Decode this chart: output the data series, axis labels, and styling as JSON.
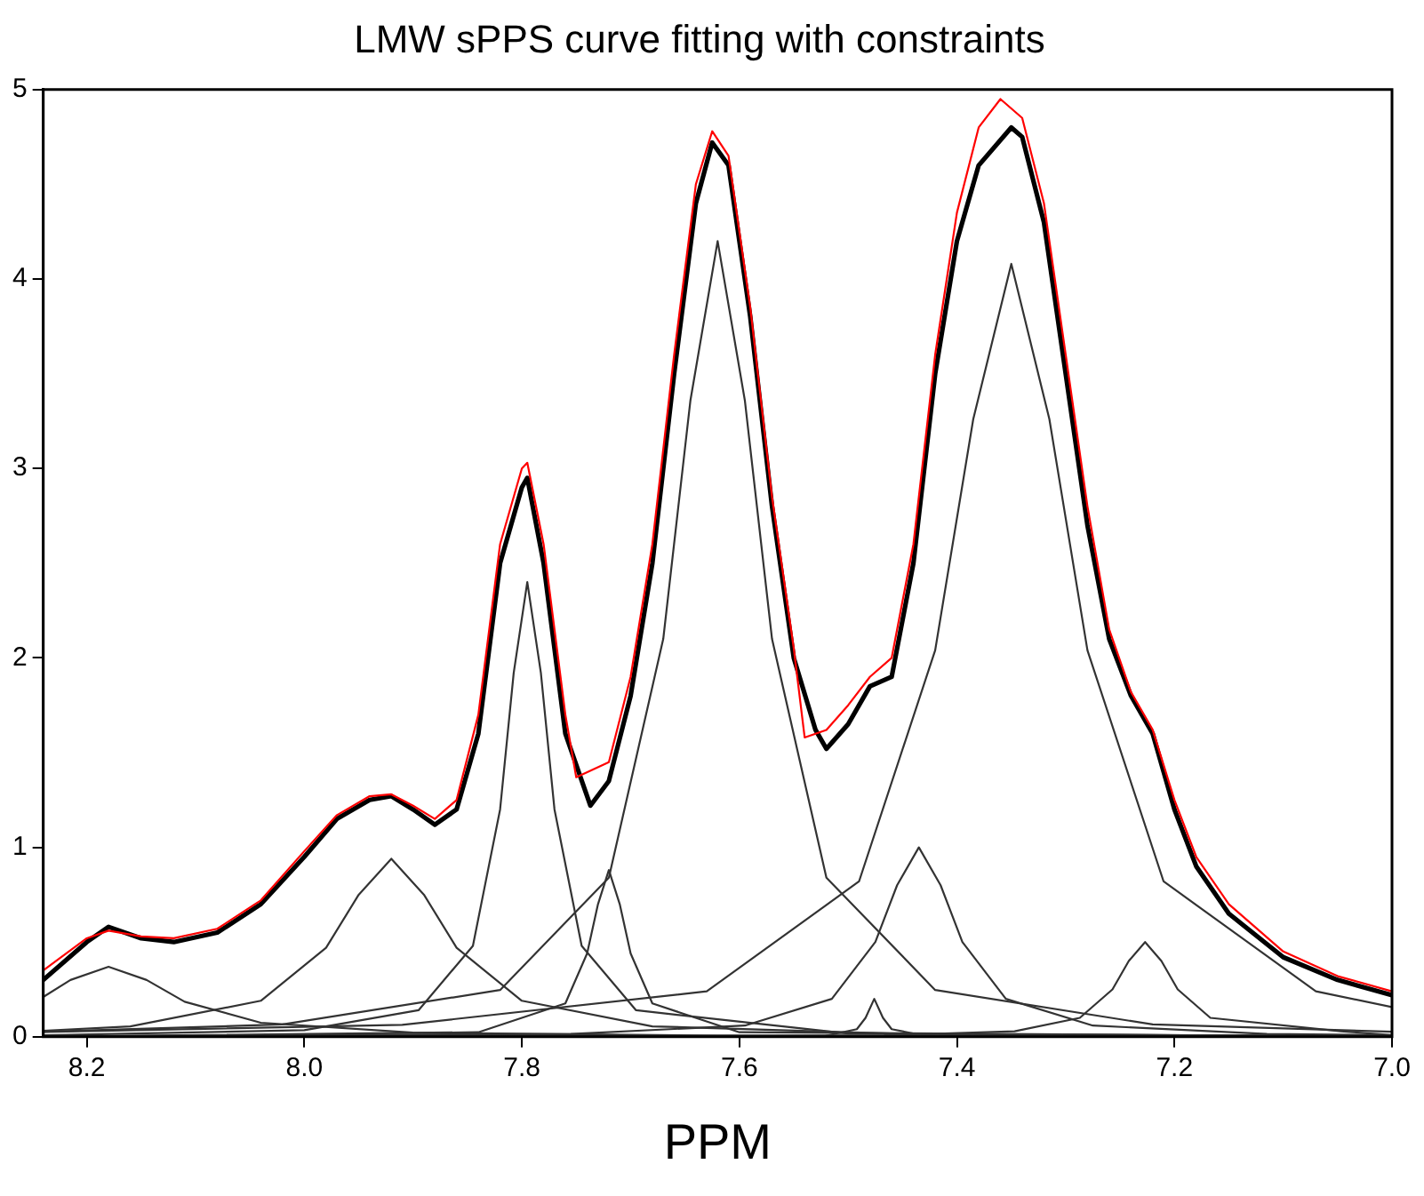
{
  "chart_data": {
    "type": "line",
    "title": "LMW sPPS curve fitting with constraints",
    "xlabel": "PPM",
    "xlim": [
      8.24,
      7.0
    ],
    "xticks": [
      8.2,
      {
        "value": 8,
        "label": "8.0"
      },
      7.8,
      7.6,
      7.4,
      7.2,
      {
        "value": 7,
        "label": "7.0"
      }
    ],
    "ylim": [
      0,
      5
    ],
    "yticks": [
      0,
      1,
      2,
      3,
      4,
      5
    ],
    "grid": false,
    "legend": false,
    "marker": "none",
    "line_style": "solid",
    "series": [
      {
        "color": "#000000",
        "x": [
          8.24,
          8.2,
          8.18,
          8.15,
          8.12,
          8.08,
          8.04,
          8.0,
          7.97,
          7.94,
          7.92,
          7.9,
          7.88,
          7.86,
          7.84,
          7.82,
          7.8,
          7.795,
          7.78,
          7.76,
          7.737,
          7.72,
          7.7,
          7.68,
          7.66,
          7.64,
          7.625,
          7.61,
          7.59,
          7.57,
          7.55,
          7.53,
          7.52,
          7.5,
          7.48,
          7.46,
          7.44,
          7.42,
          7.4,
          7.38,
          7.35,
          7.34,
          7.32,
          7.3,
          7.28,
          7.26,
          7.24,
          7.22,
          7.2,
          7.18,
          7.15,
          7.1,
          7.05,
          7.0
        ],
        "values": [
          0.3,
          0.5,
          0.58,
          0.52,
          0.5,
          0.55,
          0.7,
          0.95,
          1.15,
          1.25,
          1.27,
          1.2,
          1.12,
          1.2,
          1.6,
          2.5,
          2.9,
          2.95,
          2.5,
          1.6,
          1.22,
          1.35,
          1.8,
          2.5,
          3.5,
          4.4,
          4.72,
          4.6,
          3.8,
          2.8,
          2.0,
          1.62,
          1.52,
          1.65,
          1.85,
          1.9,
          2.5,
          3.5,
          4.2,
          4.6,
          4.8,
          4.75,
          4.3,
          3.5,
          2.7,
          2.1,
          1.8,
          1.6,
          1.2,
          0.9,
          0.65,
          0.42,
          0.3,
          0.22
        ]
      },
      {
        "color": "#ff0000",
        "x": [
          8.24,
          8.2,
          8.18,
          8.15,
          8.12,
          8.08,
          8.04,
          8.0,
          7.97,
          7.94,
          7.92,
          7.9,
          7.88,
          7.86,
          7.84,
          7.82,
          7.8,
          7.795,
          7.78,
          7.76,
          7.75,
          7.72,
          7.7,
          7.68,
          7.66,
          7.64,
          7.625,
          7.61,
          7.59,
          7.57,
          7.55,
          7.54,
          7.52,
          7.5,
          7.48,
          7.46,
          7.44,
          7.42,
          7.4,
          7.38,
          7.36,
          7.34,
          7.32,
          7.3,
          7.28,
          7.26,
          7.24,
          7.22,
          7.2,
          7.18,
          7.15,
          7.1,
          7.05,
          7.0
        ],
        "values": [
          0.35,
          0.52,
          0.56,
          0.53,
          0.52,
          0.57,
          0.72,
          0.98,
          1.17,
          1.27,
          1.28,
          1.22,
          1.15,
          1.25,
          1.7,
          2.6,
          3.0,
          3.03,
          2.6,
          1.7,
          1.37,
          1.45,
          1.9,
          2.6,
          3.6,
          4.5,
          4.78,
          4.65,
          3.85,
          2.85,
          2.05,
          1.58,
          1.62,
          1.75,
          1.9,
          2.0,
          2.6,
          3.6,
          4.35,
          4.8,
          4.95,
          4.85,
          4.4,
          3.6,
          2.8,
          2.15,
          1.82,
          1.62,
          1.25,
          0.95,
          0.7,
          0.45,
          0.32,
          0.24
        ]
      },
      {
        "color": "#333333",
        "x": [
          8.24,
          8.215,
          8.18,
          8.145,
          8.11,
          8.04,
          7.9,
          7.62,
          7.0
        ],
        "values": [
          0.21,
          0.3,
          0.37,
          0.3,
          0.185,
          0.074,
          0.022,
          0.006,
          0.0013
        ]
      },
      {
        "color": "#333333",
        "x": [
          8.24,
          8.16,
          8.04,
          7.98,
          7.95,
          7.92,
          7.89,
          7.86,
          7.8,
          7.68,
          7.44,
          7.0
        ],
        "values": [
          0.032,
          0.055,
          0.19,
          0.47,
          0.75,
          0.94,
          0.75,
          0.47,
          0.19,
          0.055,
          0.014,
          0.004
        ]
      },
      {
        "color": "#333333",
        "x": [
          8.24,
          8.0,
          7.895,
          7.845,
          7.82,
          7.8075,
          7.795,
          7.7825,
          7.77,
          7.745,
          7.695,
          7.5,
          7.0
        ],
        "values": [
          0.0076,
          0.035,
          0.14,
          0.48,
          1.2,
          1.92,
          2.4,
          1.92,
          1.2,
          0.48,
          0.14,
          0.017,
          0.0024
        ]
      },
      {
        "color": "#333333",
        "x": [
          8.24,
          7.84,
          7.76,
          7.74,
          7.73,
          7.72,
          7.71,
          7.7,
          7.68,
          7.6,
          7.0
        ],
        "values": [
          0.001,
          0.024,
          0.176,
          0.44,
          0.7,
          0.88,
          0.7,
          0.44,
          0.176,
          0.024,
          0.001
        ]
      },
      {
        "color": "#333333",
        "x": [
          8.24,
          8.02,
          7.82,
          7.72,
          7.67,
          7.645,
          7.62,
          7.595,
          7.57,
          7.52,
          7.42,
          7.22,
          7.0
        ],
        "values": [
          0.027,
          0.065,
          0.247,
          0.84,
          2.1,
          3.36,
          4.2,
          3.36,
          2.1,
          0.84,
          0.247,
          0.065,
          0.027
        ]
      },
      {
        "color": "#333333",
        "x": [
          7.52,
          7.492,
          7.484,
          7.476,
          7.468,
          7.46,
          7.43
        ],
        "values": [
          0.006,
          0.04,
          0.1,
          0.2,
          0.1,
          0.04,
          0.006
        ]
      },
      {
        "color": "#333333",
        "x": [
          8.24,
          7.755,
          7.595,
          7.515,
          7.475,
          7.455,
          7.435,
          7.415,
          7.395,
          7.355,
          7.275,
          7.115,
          7.0
        ],
        "values": [
          0.0025,
          0.015,
          0.059,
          0.2,
          0.5,
          0.8,
          1.0,
          0.8,
          0.5,
          0.2,
          0.059,
          0.015,
          0.0084
        ]
      },
      {
        "color": "#333333",
        "x": [
          8.24,
          7.91,
          7.63,
          7.49,
          7.42,
          7.385,
          7.35,
          7.315,
          7.28,
          7.21,
          7.07,
          7.0
        ],
        "values": [
          0.025,
          0.063,
          0.24,
          0.82,
          2.04,
          3.26,
          4.08,
          3.26,
          2.04,
          0.82,
          0.24,
          0.157
        ]
      },
      {
        "color": "#333333",
        "x": [
          8.24,
          7.467,
          7.347,
          7.287,
          7.257,
          7.242,
          7.227,
          7.212,
          7.197,
          7.167,
          7.047,
          7.0
        ],
        "values": [
          0.0004,
          0.0077,
          0.029,
          0.1,
          0.25,
          0.4,
          0.5,
          0.4,
          0.25,
          0.1,
          0.029,
          0.0086
        ]
      }
    ]
  }
}
